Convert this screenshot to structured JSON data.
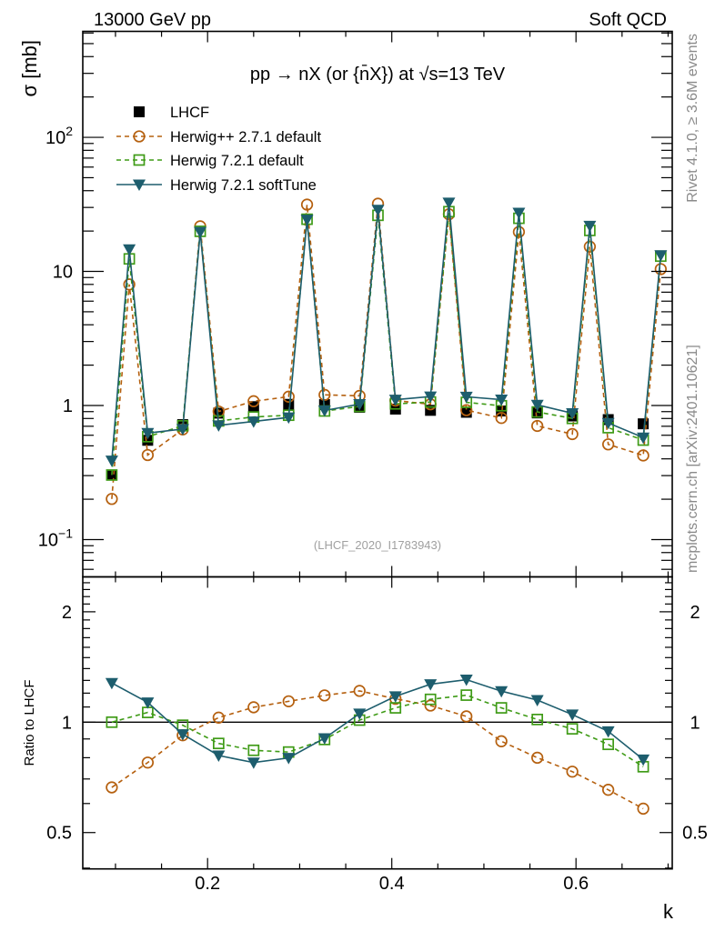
{
  "header": {
    "left": "13000 GeV pp",
    "right": "Soft QCD"
  },
  "credits": {
    "rivet": "Rivet 4.1.0, ≥ 3.6M events",
    "mcplots": "mcplots.cern.ch [arXiv:2401.10621]"
  },
  "chart_data": [
    {
      "panel": "main",
      "type": "line",
      "title": "pp →  nX (or {n̄X}) at √s=13 TeV",
      "xlabel": "k",
      "ylabel": "σ [mb]",
      "xscale": "linear",
      "yscale": "log",
      "xlim": [
        0.0645,
        0.7045
      ],
      "ylim": [
        0.0527,
        617
      ],
      "grid": false,
      "x_ticks": [
        {
          "value": 0.2,
          "label": "0.2"
        },
        {
          "value": 0.4,
          "label": "0.4"
        },
        {
          "value": 0.6,
          "label": "0.6"
        }
      ],
      "y_ticks": [
        {
          "value": 100,
          "base": "10",
          "exp": "2"
        },
        {
          "value": 10,
          "base": "10",
          "exp": ""
        },
        {
          "value": 1,
          "base": "1",
          "exp": ""
        },
        {
          "value": 0.1,
          "base": "10",
          "exp": "−1"
        }
      ],
      "annotation": "(LHCF_2020_I1783943)",
      "legend": {
        "placement": "top-left"
      },
      "series": [
        {
          "name": "LHCF",
          "color": "#000000",
          "marker": "filled-square",
          "linestyle": "none",
          "x": [
            0.096,
            0.135,
            0.173,
            0.212,
            0.25,
            0.288,
            0.327,
            0.365,
            0.404,
            0.442,
            0.481,
            0.519,
            0.558,
            0.596,
            0.635,
            0.673
          ],
          "y": [
            0.303,
            0.55,
            0.72,
            0.877,
            0.98,
            1.02,
            1.015,
            0.97,
            0.94,
            0.92,
            0.89,
            0.91,
            0.88,
            0.835,
            0.785,
            0.73
          ]
        },
        {
          "name": "Herwig++ 2.7.1 default",
          "color": "#b5600f",
          "marker": "open-circle",
          "linestyle": "dashed",
          "x": [
            0.096,
            0.115,
            0.135,
            0.173,
            0.192,
            0.212,
            0.25,
            0.288,
            0.308,
            0.327,
            0.365,
            0.385,
            0.404,
            0.442,
            0.462,
            0.481,
            0.519,
            0.538,
            0.558,
            0.596,
            0.615,
            0.635,
            0.673,
            0.692
          ],
          "y": [
            0.201,
            8.0,
            0.427,
            0.663,
            21.7,
            0.902,
            1.076,
            1.163,
            31.5,
            1.201,
            1.18,
            32.0,
            1.089,
            1.021,
            26.7,
            0.923,
            0.807,
            19.7,
            0.704,
            0.612,
            15.3,
            0.513,
            0.424,
            10.4
          ]
        },
        {
          "name": "Herwig 7.2.1 default",
          "color": "#3f9b17",
          "marker": "open-square",
          "linestyle": "dashed",
          "x": [
            0.096,
            0.115,
            0.135,
            0.173,
            0.192,
            0.212,
            0.25,
            0.288,
            0.308,
            0.327,
            0.365,
            0.385,
            0.404,
            0.442,
            0.462,
            0.481,
            0.519,
            0.538,
            0.558,
            0.596,
            0.615,
            0.635,
            0.673,
            0.692
          ],
          "y": [
            0.303,
            12.4,
            0.585,
            0.706,
            19.9,
            0.767,
            0.821,
            0.846,
            24.5,
            0.91,
            0.983,
            26.2,
            1.028,
            1.062,
            27.9,
            1.055,
            0.996,
            24.9,
            0.895,
            0.801,
            20.2,
            0.683,
            0.552,
            13.0
          ]
        },
        {
          "name": "Herwig 7.2.1 softTune",
          "color": "#1d5d6d",
          "marker": "filled-triangle-down",
          "linestyle": "solid",
          "x": [
            0.096,
            0.115,
            0.135,
            0.173,
            0.192,
            0.212,
            0.25,
            0.288,
            0.308,
            0.327,
            0.365,
            0.385,
            0.404,
            0.442,
            0.462,
            0.481,
            0.519,
            0.538,
            0.558,
            0.596,
            0.615,
            0.635,
            0.673,
            0.692
          ],
          "y": [
            0.388,
            14.6,
            0.623,
            0.667,
            19.7,
            0.711,
            0.76,
            0.815,
            24.3,
            0.918,
            1.023,
            28.8,
            1.105,
            1.167,
            32.6,
            1.162,
            1.106,
            27.4,
            1.011,
            0.876,
            21.9,
            0.741,
            0.577,
            13.2
          ]
        }
      ]
    },
    {
      "panel": "ratio",
      "type": "line",
      "xlabel": "k",
      "ylabel": "Ratio to LHCF",
      "xscale": "linear",
      "yscale": "log",
      "xlim": [
        0.0645,
        0.7045
      ],
      "ylim": [
        0.398,
        2.49
      ],
      "reference_line": 1,
      "y_ticks": [
        {
          "value": 2,
          "label": "2"
        },
        {
          "value": 1,
          "label": "1"
        },
        {
          "value": 0.5,
          "label": "0.5"
        }
      ],
      "series": [
        {
          "name": "Herwig++ 2.7.1 default",
          "color": "#b5600f",
          "marker": "open-circle",
          "linestyle": "dashed",
          "x": [
            0.096,
            0.135,
            0.173,
            0.212,
            0.25,
            0.288,
            0.327,
            0.365,
            0.404,
            0.442,
            0.481,
            0.519,
            0.558,
            0.596,
            0.635,
            0.673
          ],
          "y": [
            0.664,
            0.776,
            0.921,
            1.029,
            1.098,
            1.14,
            1.183,
            1.217,
            1.158,
            1.11,
            1.037,
            0.887,
            0.8,
            0.733,
            0.654,
            0.581
          ]
        },
        {
          "name": "Herwig 7.2.1 default",
          "color": "#3f9b17",
          "marker": "open-square",
          "linestyle": "dashed",
          "x": [
            0.096,
            0.135,
            0.173,
            0.212,
            0.25,
            0.288,
            0.327,
            0.365,
            0.404,
            0.442,
            0.481,
            0.519,
            0.558,
            0.596,
            0.635,
            0.673
          ],
          "y": [
            1.0,
            1.063,
            0.981,
            0.875,
            0.838,
            0.829,
            0.897,
            1.013,
            1.094,
            1.154,
            1.185,
            1.094,
            1.017,
            0.959,
            0.87,
            0.756
          ]
        },
        {
          "name": "Herwig 7.2.1 softTune",
          "color": "#1d5d6d",
          "marker": "filled-triangle-down",
          "linestyle": "solid",
          "x": [
            0.096,
            0.135,
            0.173,
            0.212,
            0.25,
            0.288,
            0.327,
            0.365,
            0.404,
            0.442,
            0.481,
            0.519,
            0.558,
            0.596,
            0.635,
            0.673
          ],
          "y": [
            1.279,
            1.132,
            0.927,
            0.811,
            0.776,
            0.799,
            0.904,
            1.055,
            1.176,
            1.269,
            1.306,
            1.215,
            1.149,
            1.049,
            0.944,
            0.791
          ]
        }
      ]
    }
  ]
}
